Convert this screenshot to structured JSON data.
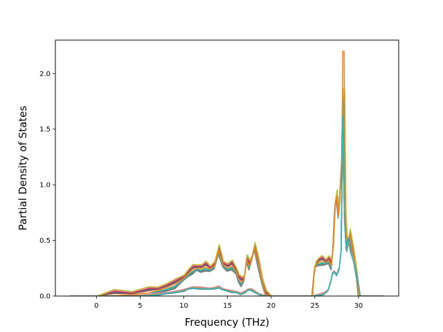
{
  "chart_data": {
    "type": "line",
    "title": "",
    "xlabel": "Frequency (THz)",
    "ylabel": "Partial Density of States",
    "xlim": [
      -4.7,
      34.6
    ],
    "ylim": [
      0,
      2.3
    ],
    "xticks": [
      0,
      5,
      10,
      15,
      20,
      25,
      30
    ],
    "yticks": [
      0.0,
      0.5,
      1.0,
      1.5,
      2.0
    ],
    "grid": false,
    "legend": "none",
    "series_groups": [
      {
        "group": "upper",
        "colors": [
          "#1f77b4",
          "#2ca02c",
          "#d62728",
          "#9467bd",
          "#8c564b",
          "#e377c2",
          "#7f7f7f",
          "#bcbd22",
          "#17becf",
          "#ff7f0e"
        ],
        "x": [
          -3,
          0,
          2,
          4,
          5,
          6,
          7,
          8,
          9,
          10,
          10.5,
          11,
          11.5,
          12,
          12.5,
          13,
          13.5,
          14,
          14.5,
          15,
          15.5,
          16,
          16.3,
          16.6,
          16.9,
          17.2,
          17.5,
          17.8,
          18.1,
          18.5,
          19,
          19.4,
          20,
          24,
          24.7,
          24.9,
          25.1,
          25.4,
          25.8,
          26.2,
          26.6,
          26.9,
          27.1,
          27.3,
          27.5,
          27.7,
          27.9,
          28.1,
          28.2,
          28.35,
          28.5,
          28.7,
          29,
          29.4,
          29.8,
          30,
          31,
          32.8
        ],
        "y": [
          0,
          0,
          0.005,
          0.01,
          0.02,
          0.03,
          0.05,
          0.07,
          0.1,
          0.16,
          0.2,
          0.23,
          0.25,
          0.24,
          0.26,
          0.24,
          0.27,
          0.41,
          0.28,
          0.25,
          0.27,
          0.22,
          0.15,
          0.12,
          0.15,
          0.33,
          0.27,
          0.34,
          0.44,
          0.3,
          0.12,
          0.01,
          0,
          0,
          0,
          0.2,
          0.28,
          0.3,
          0.31,
          0.3,
          0.32,
          0.27,
          0.45,
          0.8,
          0.9,
          0.72,
          0.95,
          1.25,
          1.78,
          1.55,
          0.7,
          0.42,
          0.56,
          0.38,
          0.18,
          0,
          0,
          0
        ],
        "jitter": [
          0.015,
          -0.012,
          0.02,
          -0.018,
          0.01,
          0.025,
          -0.02,
          0.03,
          -0.008,
          0.0
        ],
        "peak_values": [
          1.72,
          1.8,
          1.65,
          1.76,
          1.7,
          1.83,
          1.68,
          1.86,
          1.74,
          2.2
        ]
      },
      {
        "group": "lower",
        "colors": [
          "#1f77b4",
          "#2ca02c",
          "#d62728",
          "#9467bd",
          "#8c564b",
          "#e377c2",
          "#7f7f7f",
          "#bcbd22",
          "#ff7f0e",
          "#17becf"
        ],
        "x": [
          -3,
          0,
          3,
          5,
          6,
          7,
          8,
          9,
          10,
          10.5,
          11,
          12,
          13,
          13.5,
          14,
          14.5,
          15,
          15.5,
          16,
          16.5,
          17,
          17.3,
          17.6,
          18,
          18.5,
          19,
          19.3,
          20,
          24,
          24.8,
          25.1,
          25.5,
          26,
          26.5,
          26.8,
          27,
          27.2,
          27.5,
          27.8,
          28,
          28.2,
          28.4,
          28.6,
          28.8,
          29.1,
          29.5,
          29.9,
          30.2,
          31,
          32.8
        ],
        "y": [
          0,
          0,
          0,
          0.003,
          0.008,
          0.015,
          0.025,
          0.035,
          0.05,
          0.065,
          0.075,
          0.07,
          0.065,
          0.07,
          0.08,
          0.06,
          0.05,
          0.04,
          0.035,
          0.02,
          0.035,
          0.055,
          0.06,
          0.045,
          0.02,
          0.005,
          0,
          0,
          0,
          0,
          0.005,
          0.01,
          0.02,
          0.05,
          0.12,
          0.2,
          0.22,
          0.19,
          0.25,
          0.4,
          1.62,
          0.7,
          0.42,
          0.52,
          0.4,
          0.3,
          0.15,
          0,
          0,
          0
        ],
        "jitter": [
          0.004,
          -0.003,
          0.005,
          -0.004,
          0.003,
          0.006,
          -0.005,
          0.002,
          0.0,
          -0.002
        ],
        "peak_values": [
          1.55,
          1.58,
          1.5,
          1.6,
          1.52,
          1.57,
          1.48,
          1.56,
          1.53,
          1.62
        ]
      }
    ]
  }
}
